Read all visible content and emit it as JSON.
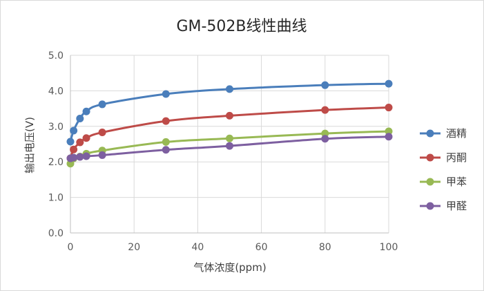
{
  "chart_data": {
    "type": "line",
    "title": "GM-502B线性曲线",
    "xlabel": "气体浓度(ppm)",
    "ylabel": "输出电压(V)",
    "xlim": [
      0,
      100
    ],
    "ylim": [
      0,
      5
    ],
    "x_ticks": [
      "0",
      "20",
      "40",
      "60",
      "80",
      "100"
    ],
    "y_ticks": [
      "0.0",
      "1.0",
      "2.0",
      "3.0",
      "4.0",
      "5.0"
    ],
    "grid": true,
    "legend_position": "right",
    "x": [
      0,
      1,
      3,
      5,
      10,
      30,
      50,
      80,
      100
    ],
    "series": [
      {
        "name": "酒精",
        "color": "#4a7ebb",
        "values": [
          2.57,
          2.88,
          3.22,
          3.42,
          3.62,
          3.91,
          4.05,
          4.16,
          4.2
        ]
      },
      {
        "name": "丙酮",
        "color": "#be4b48",
        "values": [
          2.1,
          2.35,
          2.55,
          2.67,
          2.83,
          3.15,
          3.3,
          3.46,
          3.53
        ]
      },
      {
        "name": "甲苯",
        "color": "#98b954",
        "values": [
          1.95,
          2.1,
          2.15,
          2.23,
          2.32,
          2.56,
          2.66,
          2.8,
          2.86
        ]
      },
      {
        "name": "甲醛",
        "color": "#7d5fa0",
        "values": [
          2.1,
          2.12,
          2.14,
          2.16,
          2.19,
          2.34,
          2.45,
          2.65,
          2.71
        ]
      }
    ]
  }
}
